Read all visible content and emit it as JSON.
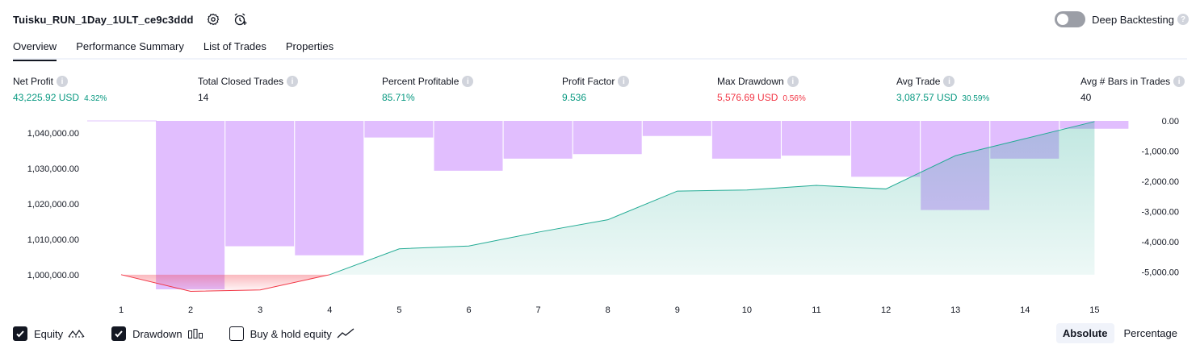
{
  "header": {
    "title": "Tuisku_RUN_1Day_1ULT_ce9c3ddd",
    "deep_backtesting_label": "Deep Backtesting",
    "deep_backtesting_enabled": false
  },
  "tabs": [
    {
      "label": "Overview",
      "active": true
    },
    {
      "label": "Performance Summary",
      "active": false
    },
    {
      "label": "List of Trades",
      "active": false
    },
    {
      "label": "Properties",
      "active": false
    }
  ],
  "metrics": [
    {
      "label": "Net Profit",
      "value": "43,225.92 USD",
      "pct": "4.32%",
      "tone": "pos"
    },
    {
      "label": "Total Closed Trades",
      "value": "14",
      "pct": "",
      "tone": "neutral"
    },
    {
      "label": "Percent Profitable",
      "value": "85.71%",
      "pct": "",
      "tone": "pos"
    },
    {
      "label": "Profit Factor",
      "value": "9.536",
      "pct": "",
      "tone": "pos"
    },
    {
      "label": "Max Drawdown",
      "value": "5,576.69 USD",
      "pct": "0.56%",
      "tone": "neg"
    },
    {
      "label": "Avg Trade",
      "value": "3,087.57 USD",
      "pct": "30.59%",
      "tone": "pos"
    },
    {
      "label": "Avg # Bars in Trades",
      "value": "40",
      "pct": "",
      "tone": "neutral"
    }
  ],
  "chart_data": {
    "type": "area",
    "x": [
      1,
      2,
      3,
      4,
      5,
      6,
      7,
      8,
      9,
      10,
      11,
      12,
      13,
      14,
      15
    ],
    "series": [
      {
        "name": "Equity",
        "axis": "left",
        "values": [
          1000000,
          995300,
          995700,
          1000000,
          1007300,
          1008100,
          1012000,
          1015500,
          1023600,
          1023900,
          1025200,
          1024200,
          1033600,
          1038400,
          1043225.92
        ]
      },
      {
        "name": "Drawdown",
        "axis": "right",
        "type": "bar",
        "values": [
          0,
          -5576.69,
          -4150,
          -4450,
          -550,
          -1650,
          -1250,
          -1100,
          -500,
          -1250,
          -1150,
          -1850,
          -2950,
          -1250,
          -260
        ]
      }
    ],
    "left_ticks": [
      "1,040,000.00",
      "1,030,000.00",
      "1,020,000.00",
      "1,010,000.00",
      "1,000,000.00"
    ],
    "left_tick_values": [
      1040000,
      1030000,
      1020000,
      1010000,
      1000000
    ],
    "right_ticks": [
      "0.00",
      "-1,000.00",
      "-2,000.00",
      "-3,000.00",
      "-4,000.00",
      "-5,000.00"
    ],
    "right_tick_values": [
      0,
      -1000,
      -2000,
      -3000,
      -4000,
      -5000
    ],
    "x_tick_labels": [
      "1",
      "2",
      "3",
      "4",
      "5",
      "6",
      "7",
      "8",
      "9",
      "10",
      "11",
      "12",
      "13",
      "14",
      "15"
    ],
    "left_range": [
      997000,
      1045000
    ],
    "right_range": [
      -5576.69,
      0
    ],
    "colors": {
      "equity_line": "#22ab94",
      "equity_fill": "#22ab94",
      "equity_neg_line": "#f23645",
      "drawdown_bar": "#d7a8fd"
    }
  },
  "legend": [
    {
      "label": "Equity",
      "checked": true,
      "icon": "equity-line-icon"
    },
    {
      "label": "Drawdown",
      "checked": true,
      "icon": "drawdown-bars-icon"
    },
    {
      "label": "Buy & hold equity",
      "checked": false,
      "icon": "buy-hold-line-icon"
    }
  ],
  "mode": {
    "absolute_label": "Absolute",
    "percentage_label": "Percentage",
    "selected": "Absolute"
  }
}
